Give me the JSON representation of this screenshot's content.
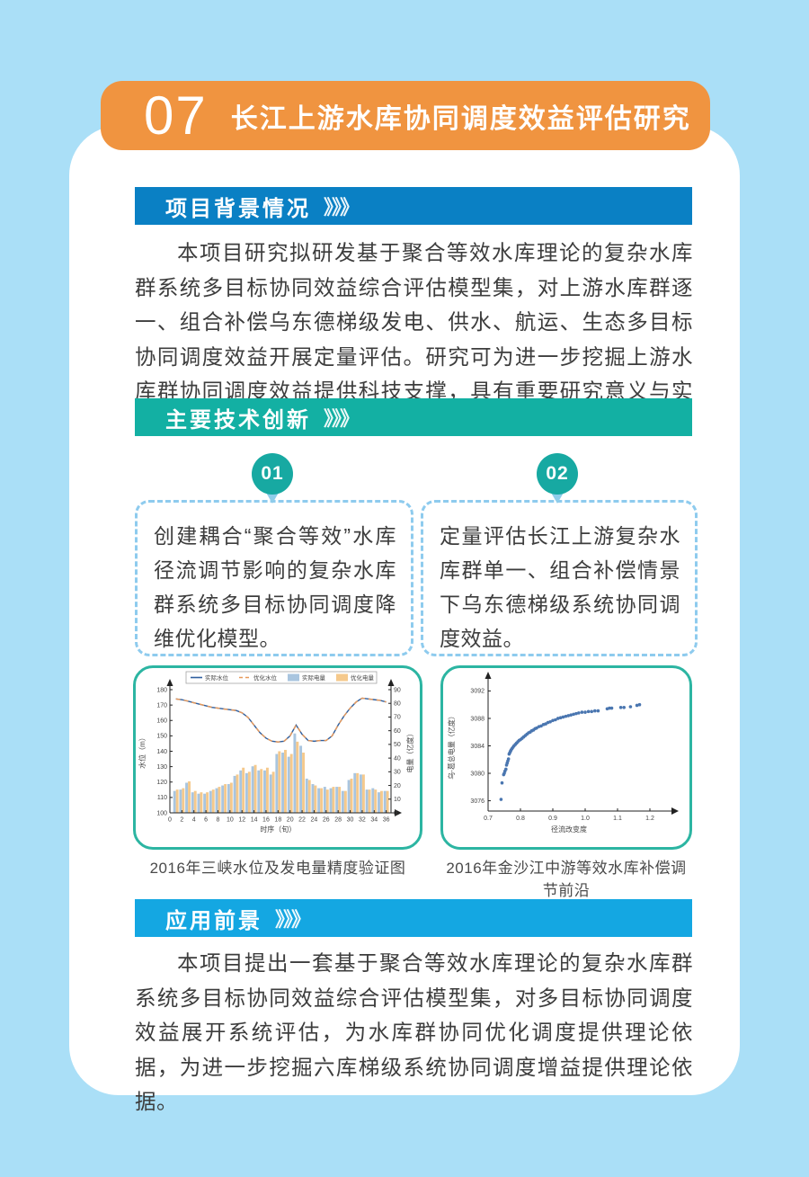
{
  "page": {
    "background": "#aadff7"
  },
  "banner": {
    "number": "07",
    "title": "长江上游水库协同调度效益评估研究",
    "color": "#f09440"
  },
  "sections": {
    "background": {
      "title": "项目背景情况",
      "chevrons": "》》》",
      "color": "#0a80c4",
      "body": "本项目研究拟研发基于聚合等效水库理论的复杂水库群系统多目标协同效益综合评估模型集，对上游水库群逐一、组合补偿乌东德梯级发电、供水、航运、生态多目标协同调度效益开展定量评估。研究可为进一步挖掘上游水库群协同调度效益提供科技支撑，具有重要研究意义与实践价值。"
    },
    "innovation": {
      "title": "主要技术创新",
      "chevrons": "》》》",
      "color": "#13b0a3",
      "items": [
        {
          "badge": "01",
          "text": "创建耦合“聚合等效”水库径流调节影响的复杂水库群系统多目标协同调度降维优化模型。"
        },
        {
          "badge": "02",
          "text": "定量评估长江上游复杂水库群单一、组合补偿情景下乌东德梯级系统协同调度效益。"
        }
      ]
    },
    "application": {
      "title": "应用前景",
      "chevrons": "》》》",
      "color": "#14a7e2",
      "body": "本项目提出一套基于聚合等效水库理论的复杂水库群系统多目标协同效益综合评估模型集，对多目标协同调度效益展开系统评估，为水库群协同优化调度提供理论依据，为进一步挖掘六库梯级系统协同调度增益提供理论依据。"
    }
  },
  "figures": {
    "left_caption": "2016年三峡水位及发电量精度验证图",
    "right_caption": "2016年金沙江中游等效水库补偿调节前沿"
  },
  "chart_data": [
    {
      "type": "combo-bar-line",
      "title": "2016年三峡水位及发电量精度验证图",
      "xlabel": "时序（旬）",
      "ylabel_left": "水位（m）",
      "ylabel_right": "电量（亿度）",
      "xlim": [
        0,
        36.8
      ],
      "xticks": [
        0,
        2,
        4,
        6,
        8,
        10,
        12,
        14,
        16,
        18,
        20,
        22,
        24,
        26,
        28,
        30,
        32,
        34,
        36
      ],
      "ylim_left": [
        100,
        180
      ],
      "yticks_left": [
        100,
        110,
        120,
        130,
        140,
        150,
        160,
        170,
        180
      ],
      "ylim_right": [
        0,
        90
      ],
      "yticks_right": [
        0,
        10,
        20,
        30,
        40,
        50,
        60,
        70,
        80,
        90
      ],
      "x": [
        1,
        2,
        3,
        4,
        5,
        6,
        7,
        8,
        9,
        10,
        11,
        12,
        13,
        14,
        15,
        16,
        17,
        18,
        19,
        20,
        21,
        22,
        23,
        24,
        25,
        26,
        27,
        28,
        29,
        30,
        31,
        32,
        33,
        34,
        35,
        36
      ],
      "legend_position": "top",
      "series": [
        {
          "name": "实际水位",
          "type": "line",
          "axis": "left",
          "style": "solid",
          "color": "#2f5f9e",
          "values": [
            174,
            173.5,
            172.5,
            171.5,
            170.5,
            169.5,
            168.5,
            168,
            167.5,
            167,
            166.5,
            165,
            162,
            157,
            152,
            148.5,
            146.5,
            146,
            146.5,
            150,
            157,
            151,
            147,
            146.5,
            147,
            147,
            150,
            157,
            163,
            168,
            172,
            174.5,
            174,
            173.5,
            173,
            172
          ]
        },
        {
          "name": "优化水位",
          "type": "line",
          "axis": "left",
          "style": "dashed",
          "color": "#e8995a",
          "values": [
            174,
            173.4,
            172.6,
            171.4,
            170.6,
            169.4,
            168.6,
            168,
            167.4,
            167,
            166.4,
            165,
            162,
            157,
            152,
            148.5,
            146.5,
            146,
            146.5,
            150,
            157,
            151,
            147,
            146.5,
            147,
            147,
            150,
            157,
            163,
            168,
            172,
            174.5,
            174,
            173.5,
            173,
            172
          ]
        },
        {
          "name": "实际电量",
          "type": "bar",
          "axis": "right",
          "color": "#a9c5df",
          "values": [
            16,
            17,
            22,
            15,
            14,
            14,
            16,
            18,
            20,
            21,
            27,
            31,
            29,
            34,
            31,
            31,
            28,
            43,
            44,
            41,
            58,
            49,
            25,
            21,
            18,
            19,
            18,
            19,
            16,
            24,
            29,
            28,
            17,
            18,
            15,
            16
          ]
        },
        {
          "name": "优化电量",
          "type": "bar",
          "axis": "right",
          "color": "#f5c98c",
          "values": [
            17,
            18,
            23,
            16,
            15,
            15,
            17,
            19,
            21,
            22,
            28,
            33,
            30,
            35,
            32,
            33,
            30,
            45,
            46,
            43,
            52,
            44,
            24,
            20,
            18,
            17,
            19,
            19,
            16,
            25,
            29,
            28,
            17,
            17,
            16,
            16
          ]
        }
      ]
    },
    {
      "type": "scatter",
      "title": "2016年金沙江中游等效水库补偿调节前沿",
      "xlabel": "径流改变度",
      "ylabel": "乌-葛总电量（亿度）",
      "xlim": [
        0.7,
        1.25
      ],
      "xticks": [
        0.7,
        0.8,
        0.9,
        1.0,
        1.1,
        1.2
      ],
      "ylim": [
        3074.5,
        3093.5
      ],
      "yticks": [
        3076,
        3080,
        3084,
        3088,
        3092
      ],
      "color": "#4a76b0",
      "points": [
        [
          0.74,
          3076.2
        ],
        [
          0.743,
          3078.6
        ],
        [
          0.748,
          3079.8
        ],
        [
          0.75,
          3080.0
        ],
        [
          0.752,
          3080.3
        ],
        [
          0.755,
          3080.6
        ],
        [
          0.757,
          3081.2
        ],
        [
          0.759,
          3081.5
        ],
        [
          0.761,
          3081.8
        ],
        [
          0.763,
          3082.1
        ],
        [
          0.765,
          3082.8
        ],
        [
          0.767,
          3083.0
        ],
        [
          0.769,
          3083.2
        ],
        [
          0.771,
          3083.4
        ],
        [
          0.774,
          3083.6
        ],
        [
          0.777,
          3083.8
        ],
        [
          0.78,
          3084.0
        ],
        [
          0.784,
          3084.2
        ],
        [
          0.788,
          3084.4
        ],
        [
          0.792,
          3084.6
        ],
        [
          0.796,
          3084.8
        ],
        [
          0.8,
          3084.9
        ],
        [
          0.805,
          3085.1
        ],
        [
          0.81,
          3085.3
        ],
        [
          0.815,
          3085.5
        ],
        [
          0.82,
          3085.7
        ],
        [
          0.825,
          3085.9
        ],
        [
          0.83,
          3086.0
        ],
        [
          0.835,
          3086.2
        ],
        [
          0.84,
          3086.3
        ],
        [
          0.845,
          3086.5
        ],
        [
          0.85,
          3086.6
        ],
        [
          0.857,
          3086.8
        ],
        [
          0.864,
          3086.9
        ],
        [
          0.871,
          3087.1
        ],
        [
          0.878,
          3087.2
        ],
        [
          0.885,
          3087.4
        ],
        [
          0.892,
          3087.5
        ],
        [
          0.9,
          3087.7
        ],
        [
          0.908,
          3087.8
        ],
        [
          0.916,
          3088.0
        ],
        [
          0.924,
          3088.1
        ],
        [
          0.932,
          3088.2
        ],
        [
          0.94,
          3088.3
        ],
        [
          0.948,
          3088.4
        ],
        [
          0.956,
          3088.5
        ],
        [
          0.964,
          3088.6
        ],
        [
          0.972,
          3088.7
        ],
        [
          0.98,
          3088.8
        ],
        [
          0.99,
          3088.9
        ],
        [
          1.0,
          3088.9
        ],
        [
          1.01,
          3089.0
        ],
        [
          1.02,
          3089.0
        ],
        [
          1.03,
          3089.1
        ],
        [
          1.04,
          3089.1
        ],
        [
          1.068,
          3089.4
        ],
        [
          1.075,
          3089.5
        ],
        [
          1.082,
          3089.5
        ],
        [
          1.11,
          3089.6
        ],
        [
          1.12,
          3089.6
        ],
        [
          1.14,
          3089.7
        ],
        [
          1.16,
          3089.9
        ],
        [
          1.168,
          3090.0
        ]
      ]
    }
  ]
}
